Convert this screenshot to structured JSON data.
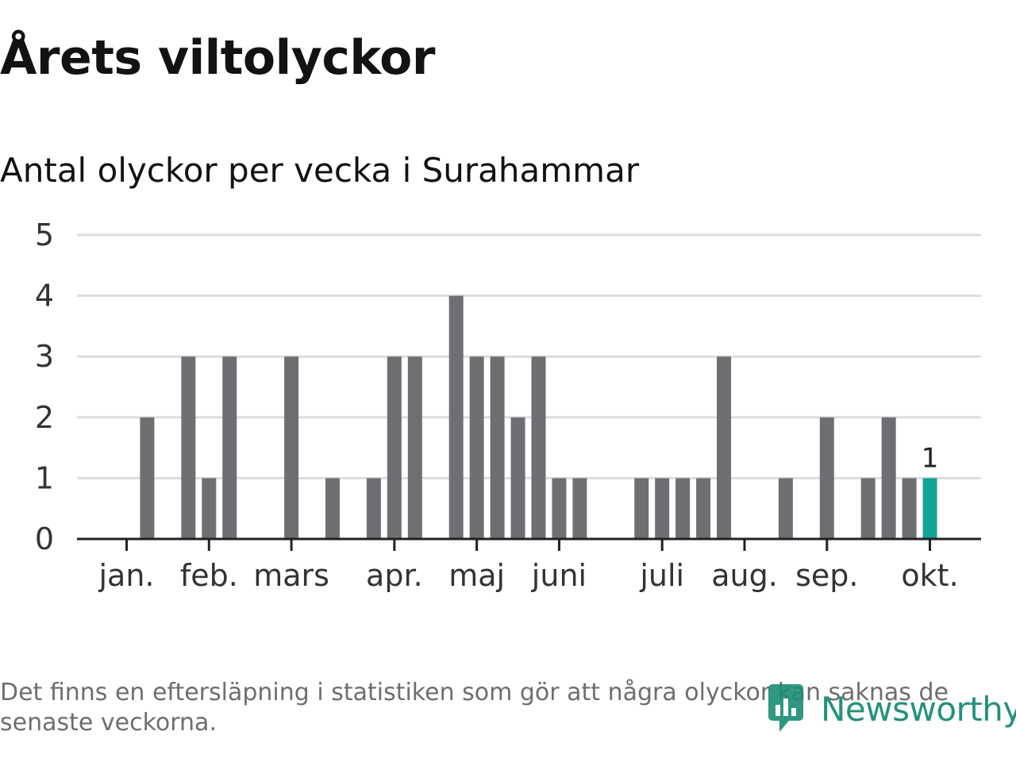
{
  "header": {
    "title": "Årets viltolyckor",
    "subtitle": "Antal olyckor per vecka i Surahammar"
  },
  "chart_data": {
    "type": "bar",
    "title": "Årets viltolyckor",
    "subtitle": "Antal olyckor per vecka i Surahammar",
    "xlabel": "",
    "ylabel": "",
    "ylim": [
      0,
      5
    ],
    "yticks": [
      0,
      1,
      2,
      3,
      4,
      5
    ],
    "grid": true,
    "x_tick_labels": [
      "jan.",
      "feb.",
      "mars",
      "apr.",
      "maj",
      "juni",
      "juli",
      "aug.",
      "sep.",
      "okt."
    ],
    "x_tick_weeks": [
      1,
      5,
      9,
      14,
      18,
      22,
      27,
      31,
      35,
      40
    ],
    "weeks": [
      1,
      2,
      3,
      4,
      5,
      6,
      7,
      8,
      9,
      10,
      11,
      12,
      13,
      14,
      15,
      16,
      17,
      18,
      19,
      20,
      21,
      22,
      23,
      24,
      25,
      26,
      27,
      28,
      29,
      30,
      31,
      32,
      33,
      34,
      35,
      36,
      37,
      38,
      39,
      40
    ],
    "values": [
      0,
      2,
      0,
      3,
      1,
      3,
      0,
      0,
      3,
      0,
      1,
      0,
      1,
      3,
      3,
      0,
      4,
      3,
      3,
      2,
      3,
      1,
      1,
      0,
      0,
      1,
      1,
      1,
      1,
      3,
      0,
      0,
      1,
      0,
      2,
      0,
      1,
      2,
      1,
      null
    ],
    "highlight": {
      "week": 40,
      "value": 1,
      "label": "1"
    },
    "colors": {
      "bar": "#6f6e72",
      "highlight": "#12a394",
      "grid": "#dddddd",
      "axis": "#222222"
    }
  },
  "footer": {
    "note": "Det finns en eftersläpning i statistiken som gör att några olyckor kan saknas de senaste veckorna.",
    "brand": "Newsworthy",
    "brand_color": "#1a8c73"
  }
}
